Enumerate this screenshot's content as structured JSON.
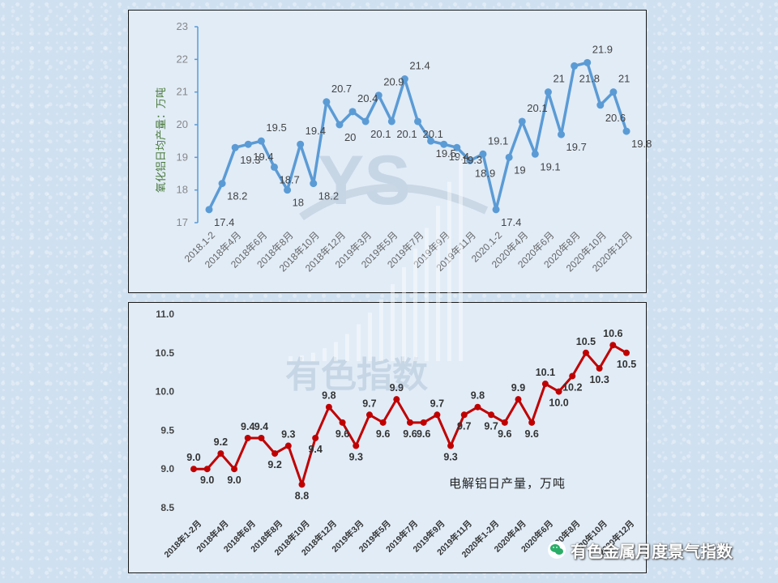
{
  "chart_data": [
    {
      "type": "line",
      "title": "",
      "ylabel": "氧化铝日均产量：万吨",
      "xlabel": "",
      "ylim": [
        17,
        23
      ],
      "yticks": [
        "17",
        "18",
        "19",
        "20",
        "21",
        "22",
        "23"
      ],
      "color": "#5b9bd5",
      "x_ticks": [
        "2018.1-2",
        "2018年4月",
        "2018年6月",
        "2018年8月",
        "2018年10月",
        "2018年12月",
        "2019年3月",
        "2019年5月",
        "2019年7月",
        "2019年9月",
        "2019年11月",
        "2020.1-2",
        "2020年4月",
        "2020年6月",
        "2020年8月",
        "2020年10月",
        "2020年12月"
      ],
      "values": [
        17.4,
        18.2,
        19.3,
        19.4,
        19.5,
        18.7,
        18.0,
        19.4,
        18.2,
        20.7,
        20.0,
        20.4,
        20.1,
        20.9,
        20.1,
        21.4,
        20.1,
        19.5,
        19.4,
        19.3,
        18.9,
        19.1,
        17.4,
        19.0,
        20.1,
        19.1,
        21.0,
        19.7,
        21.8,
        21.9,
        20.6,
        21.0,
        19.8
      ],
      "labels": [
        "17.4",
        "18.2",
        "19.3",
        "19.4",
        "19.5",
        "18.7",
        "18",
        "19.4",
        "18.2",
        "20.7",
        "20",
        "20.4",
        "20.1",
        "20.9",
        "20.1",
        "21.4",
        "20.1",
        "19.5",
        "19.4",
        "19.3",
        "18.9",
        "19.1",
        "17.4",
        "19",
        "20.1",
        "19.1",
        "21",
        "19.7",
        "21.8",
        "21.9",
        "20.6",
        "21",
        "19.8"
      ]
    },
    {
      "type": "line",
      "title": "",
      "annotation": "电解铝日产量，万吨",
      "xlabel": "",
      "ylim": [
        8.5,
        11.0
      ],
      "yticks": [
        "8.5",
        "9.0",
        "9.5",
        "10.0",
        "10.5",
        "11.0"
      ],
      "color": "#c00000",
      "x_ticks": [
        "2018年1-2月",
        "2018年4月",
        "2018年6月",
        "2018年8月",
        "2018年10月",
        "2018年12月",
        "2019年3月",
        "2019年5月",
        "2019年7月",
        "2019年9月",
        "2019年11月",
        "2020年1-2月",
        "2020年4月",
        "2020年6月",
        "2020年8月",
        "2020年10月",
        "2020年12月"
      ],
      "values": [
        9.0,
        9.0,
        9.2,
        9.0,
        9.4,
        9.4,
        9.2,
        9.3,
        8.8,
        9.4,
        9.8,
        9.6,
        9.3,
        9.7,
        9.6,
        9.9,
        9.6,
        9.6,
        9.7,
        9.3,
        9.7,
        9.8,
        9.7,
        9.6,
        9.9,
        9.6,
        10.1,
        10.0,
        10.2,
        10.5,
        10.3,
        10.6,
        10.5
      ],
      "labels": [
        "9.0",
        "9.0",
        "9.2",
        "9.0",
        "9.4",
        "9.4",
        "9.2",
        "9.3",
        "8.8",
        "9.4",
        "9.8",
        "9.6",
        "9.3",
        "9.7",
        "9.6",
        "9.9",
        "9.6",
        "9.6",
        "9.7",
        "9.3",
        "9.7",
        "9.8",
        "9.7",
        "9.6",
        "9.9",
        "9.6",
        "10.1",
        "10.0",
        "10.2",
        "10.5",
        "10.3",
        "10.6",
        "10.5"
      ]
    }
  ],
  "watermark": {
    "logo_text": "YS",
    "brand_text": "有色指数"
  },
  "footer": {
    "text": "有色金属月度景气指数"
  }
}
